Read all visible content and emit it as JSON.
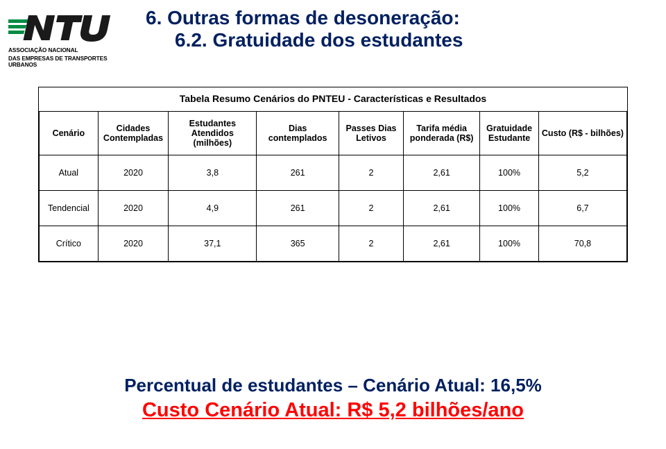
{
  "logo": {
    "sub1": "ASSOCIAÇÃO NACIONAL",
    "sub2": "DAS EMPRESAS DE TRANSPORTES URBANOS"
  },
  "title": {
    "line1": "6. Outras formas de desoneração:",
    "line2": "6.2. Gratuidade dos estudantes"
  },
  "table": {
    "caption": "Tabela Resumo Cenários do PNTEU - Características e Resultados",
    "columns": [
      "Cenário",
      "Cidades Contempladas",
      "Estudantes Atendidos (milhões)",
      "Dias contemplados",
      "Passes Dias Letivos",
      "Tarifa média ponderada (R$)",
      "Gratuidade Estudante",
      "Custo (R$ - bilhões)"
    ],
    "rows": [
      [
        "Atual",
        "2020",
        "3,8",
        "261",
        "2",
        "2,61",
        "100%",
        "5,2"
      ],
      [
        "Tendencial",
        "2020",
        "4,9",
        "261",
        "2",
        "2,61",
        "100%",
        "6,7"
      ],
      [
        "Crítico",
        "2020",
        "37,1",
        "365",
        "2",
        "2,61",
        "100%",
        "70,8"
      ]
    ],
    "col_widths": [
      "10%",
      "12%",
      "15%",
      "14%",
      "11%",
      "13%",
      "10%",
      "15%"
    ]
  },
  "footnote": {
    "line1": "Percentual de estudantes – Cenário Atual: 16,5%",
    "line2": "Custo Cenário Atual: R$ 5,2 bilhões/ano"
  },
  "colors": {
    "title": "#002060",
    "footnote1": "#002060",
    "footnote2": "#ff0000",
    "logo_green": "#008c44",
    "logo_dark": "#1a1a1a"
  }
}
